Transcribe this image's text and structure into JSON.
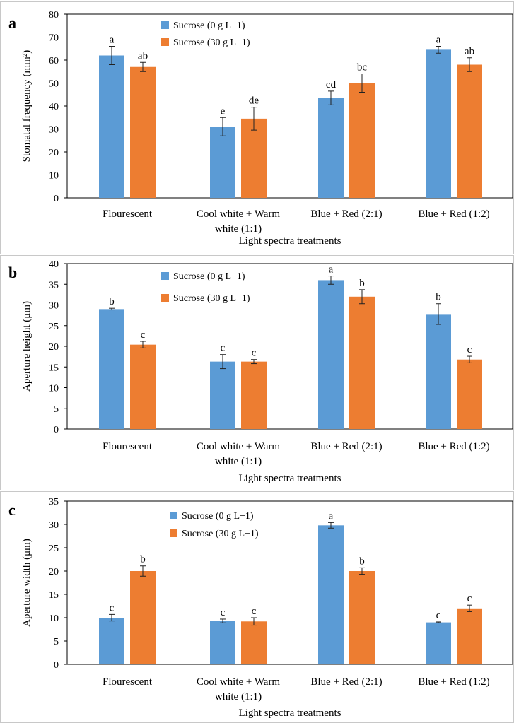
{
  "colors": {
    "series1": "#5B9BD5",
    "series2": "#ED7D31",
    "axis": "#000000",
    "errorbar": "#222222"
  },
  "chart_data": [
    {
      "panel_label": "a",
      "type": "bar",
      "ylabel": "Stomatal frequency (mm²)",
      "xlabel": "Light spectra treatments",
      "ylim": [
        0,
        80
      ],
      "yticks": [
        0,
        10,
        20,
        30,
        40,
        50,
        60,
        70,
        80
      ],
      "categories": [
        [
          "Flourescent"
        ],
        [
          "Cool white + Warm",
          "white (1:1)"
        ],
        [
          "Blue + Red  (2:1)"
        ],
        [
          "Blue + Red  (1:2)"
        ]
      ],
      "legend_position": "top-left",
      "series": [
        {
          "name": "Sucrose (0 g L−1)",
          "values": [
            62,
            31,
            43.5,
            64.5
          ],
          "errors": [
            4,
            4,
            3,
            1.5
          ],
          "letters": [
            "a",
            "e",
            "cd",
            "a"
          ]
        },
        {
          "name": "Sucrose (30 g L−1)",
          "values": [
            57,
            34.5,
            50,
            58
          ],
          "errors": [
            2,
            5,
            4,
            3
          ],
          "letters": [
            "ab",
            "de",
            "bc",
            "ab"
          ]
        }
      ]
    },
    {
      "panel_label": "b",
      "type": "bar",
      "ylabel": "Aperture height (μm)",
      "xlabel": "Light spectra treatments",
      "ylim": [
        0,
        40
      ],
      "yticks": [
        0,
        5,
        10,
        15,
        20,
        25,
        30,
        35,
        40
      ],
      "categories": [
        [
          "Flourescent"
        ],
        [
          "Cool white + Warm",
          "white (1:1)"
        ],
        [
          "Blue + Red  (2:1)"
        ],
        [
          "Blue + Red  (1:2)"
        ]
      ],
      "legend_position": "top-left",
      "series": [
        {
          "name": "Sucrose (0 g L−1)",
          "values": [
            29,
            16.3,
            36,
            27.8
          ],
          "errors": [
            0.2,
            1.7,
            1,
            2.5
          ],
          "letters": [
            "b",
            "c",
            "a",
            "b"
          ]
        },
        {
          "name": "Sucrose (30 g L−1)",
          "values": [
            20.4,
            16.3,
            32,
            16.8
          ],
          "errors": [
            0.8,
            0.5,
            1.7,
            0.8
          ],
          "letters": [
            "c",
            "c",
            "b",
            "c"
          ]
        }
      ]
    },
    {
      "panel_label": "c",
      "type": "bar",
      "ylabel": "Aperture width (μm)",
      "xlabel": "Light spectra treatments",
      "ylim": [
        0,
        35
      ],
      "yticks": [
        0,
        5,
        10,
        15,
        20,
        25,
        30,
        35
      ],
      "categories": [
        [
          "Flourescent"
        ],
        [
          "Cool white + Warm",
          "white (1:1)"
        ],
        [
          "Blue + Red  (2:1)"
        ],
        [
          "Blue + Red  (1:2)"
        ]
      ],
      "legend_position": "top-left",
      "series": [
        {
          "name": "Sucrose (0 g L−1)",
          "values": [
            10,
            9.3,
            29.8,
            9
          ],
          "errors": [
            0.7,
            0.4,
            0.6,
            0.1
          ],
          "letters": [
            "c",
            "c",
            "a",
            "c"
          ]
        },
        {
          "name": "Sucrose (30 g L−1)",
          "values": [
            20,
            9.2,
            20,
            12
          ],
          "errors": [
            1.1,
            0.8,
            0.7,
            0.7
          ],
          "letters": [
            "b",
            "c",
            "b",
            "c"
          ]
        }
      ]
    }
  ]
}
